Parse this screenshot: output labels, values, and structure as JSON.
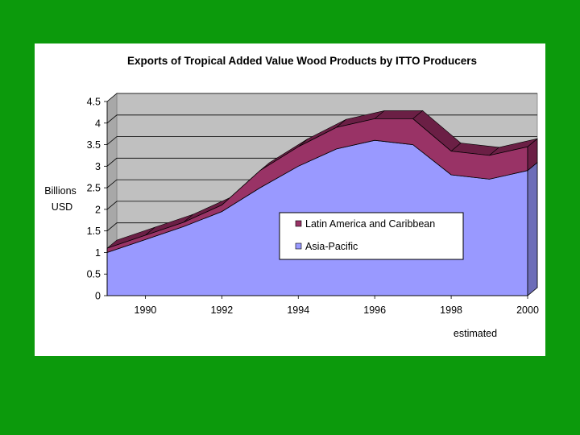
{
  "colors": {
    "background": "#0c9a0c",
    "panel": "#ffffff",
    "wall": "#c0c0c0",
    "asia": "#9999ff",
    "asia_side": "#6d6db8",
    "latam": "#993366",
    "latam_top": "#6b1f45"
  },
  "chart_data": {
    "type": "area",
    "stacked": true,
    "title": "Exports of Tropical Added Value Wood Products by ITTO Producers",
    "ylabel_lines": [
      "Billions",
      "USD"
    ],
    "xlabel": "",
    "x": [
      1989,
      1990,
      1991,
      1992,
      1993,
      1994,
      1995,
      1996,
      1997,
      1998,
      1999,
      2000
    ],
    "x_tick_labels": [
      "1990",
      "1992",
      "1994",
      "1996",
      "1998",
      "2000"
    ],
    "x_tick_values": [
      1990,
      1992,
      1994,
      1996,
      1998,
      2000
    ],
    "y_tick_labels": [
      "0",
      "0.5",
      "1",
      "1.5",
      "2",
      "2.5",
      "3",
      "3.5",
      "4",
      "4.5"
    ],
    "ylim": [
      0,
      4.5
    ],
    "series": [
      {
        "name": "Asia-Pacific",
        "values": [
          1.0,
          1.3,
          1.6,
          1.95,
          2.5,
          3.0,
          3.4,
          3.6,
          3.5,
          2.8,
          2.7,
          2.9
        ]
      },
      {
        "name": "Latin America and Caribbean",
        "values": [
          0.1,
          0.1,
          0.1,
          0.15,
          0.4,
          0.45,
          0.5,
          0.5,
          0.6,
          0.55,
          0.55,
          0.55
        ]
      }
    ],
    "legend": {
      "position": "center-right",
      "items": [
        "Latin America and Caribbean",
        "Asia-Pacific"
      ]
    },
    "annotation": "estimated"
  }
}
